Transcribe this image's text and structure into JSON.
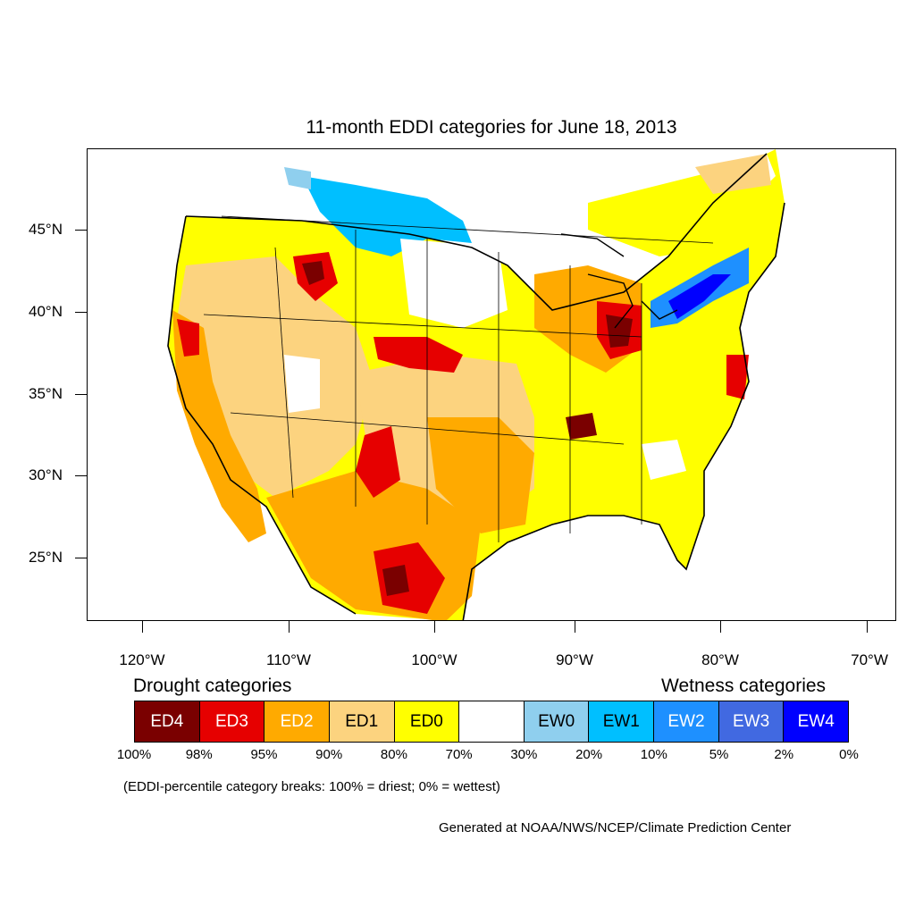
{
  "map": {
    "title": "11-month EDDI categories for June 18, 2013",
    "lat_labels": [
      "45°N",
      "40°N",
      "35°N",
      "30°N",
      "25°N"
    ],
    "lon_labels": [
      "120°W",
      "110°W",
      "100°W",
      "90°W",
      "80°W",
      "70°W"
    ]
  },
  "legend": {
    "drought_heading": "Drought categories",
    "wetness_heading": "Wetness categories",
    "categories": [
      {
        "label": "ED4",
        "color": "#7a0000",
        "text_color": "#ffffff"
      },
      {
        "label": "ED3",
        "color": "#e60000",
        "text_color": "#ffffff"
      },
      {
        "label": "ED2",
        "color": "#ffaa00",
        "text_color": "#ffffff"
      },
      {
        "label": "ED1",
        "color": "#fcd37f",
        "text_color": "#000000"
      },
      {
        "label": "ED0",
        "color": "#ffff00",
        "text_color": "#000000"
      },
      {
        "label": "",
        "color": "#ffffff",
        "text_color": "#000000"
      },
      {
        "label": "EW0",
        "color": "#8fcfee",
        "text_color": "#000000"
      },
      {
        "label": "EW1",
        "color": "#00bfff",
        "text_color": "#000000"
      },
      {
        "label": "EW2",
        "color": "#1e90ff",
        "text_color": "#ffffff"
      },
      {
        "label": "EW3",
        "color": "#4169e1",
        "text_color": "#ffffff"
      },
      {
        "label": "EW4",
        "color": "#0000ff",
        "text_color": "#ffffff"
      }
    ],
    "percent_breaks": [
      "100%",
      "98%",
      "95%",
      "90%",
      "80%",
      "70%",
      "30%",
      "20%",
      "10%",
      "5%",
      "2%",
      "0%"
    ],
    "note": "(EDDI-percentile category breaks: 100% = driest; 0% = wettest)"
  },
  "credit": "Generated at NOAA/NWS/NCEP/Climate Prediction Center"
}
